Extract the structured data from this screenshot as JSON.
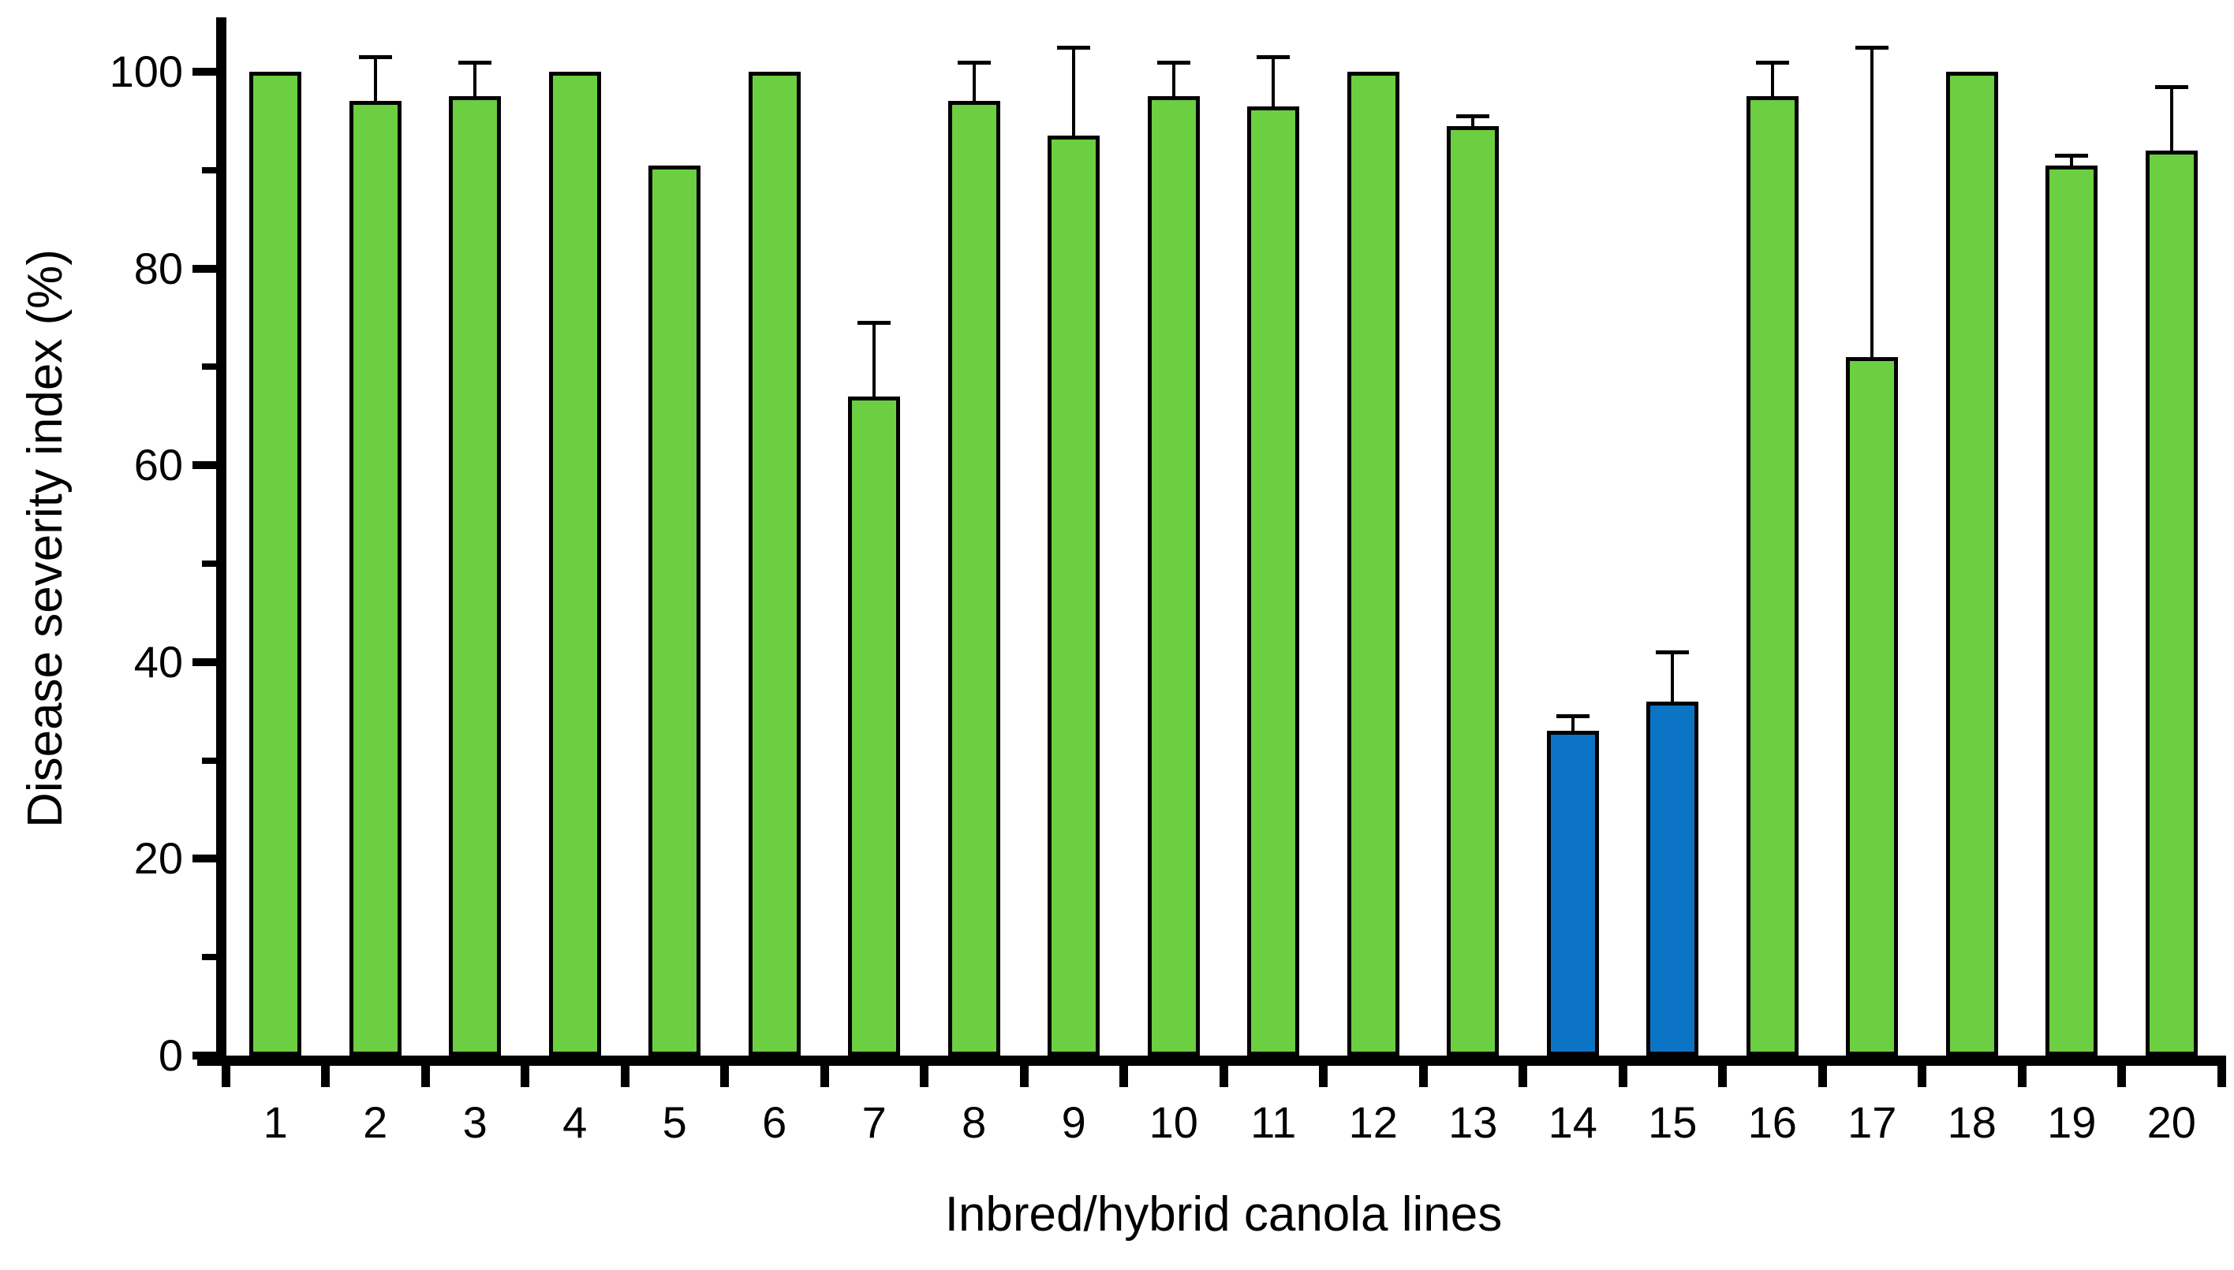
{
  "chart_data": {
    "type": "bar",
    "title": "",
    "xlabel": "Inbred/hybrid canola lines",
    "ylabel": "Disease severity index (%)",
    "ylim": [
      0,
      105.3
    ],
    "ytick_major": [
      0,
      20,
      40,
      60,
      80,
      100
    ],
    "ytick_minor": [
      10,
      30,
      50,
      70,
      90
    ],
    "grid": false,
    "legend": "none",
    "categories": [
      "1",
      "2",
      "3",
      "4",
      "5",
      "6",
      "7",
      "8",
      "9",
      "10",
      "11",
      "12",
      "13",
      "14",
      "15",
      "16",
      "17",
      "18",
      "19",
      "20"
    ],
    "series": [
      {
        "name": "Disease severity index",
        "values": [
          100,
          97,
          97.5,
          100,
          90.5,
          100,
          67,
          97,
          93.5,
          97.5,
          96.5,
          100,
          94.5,
          33,
          36,
          97.5,
          71,
          100,
          90.5,
          92
        ],
        "error_upper": [
          0,
          4.5,
          3.5,
          0,
          0,
          0,
          7.5,
          4,
          9,
          3.5,
          5,
          0,
          1,
          1.5,
          5,
          3.5,
          31.5,
          0,
          1,
          6.5
        ]
      }
    ],
    "highlighted_categories": [
      "14",
      "15"
    ],
    "colors": {
      "bar_default": "#6CCE41",
      "bar_highlight": "#0B74C4",
      "bar_border": "#000000",
      "axis": "#000000",
      "background": "#FFFFFF"
    }
  }
}
